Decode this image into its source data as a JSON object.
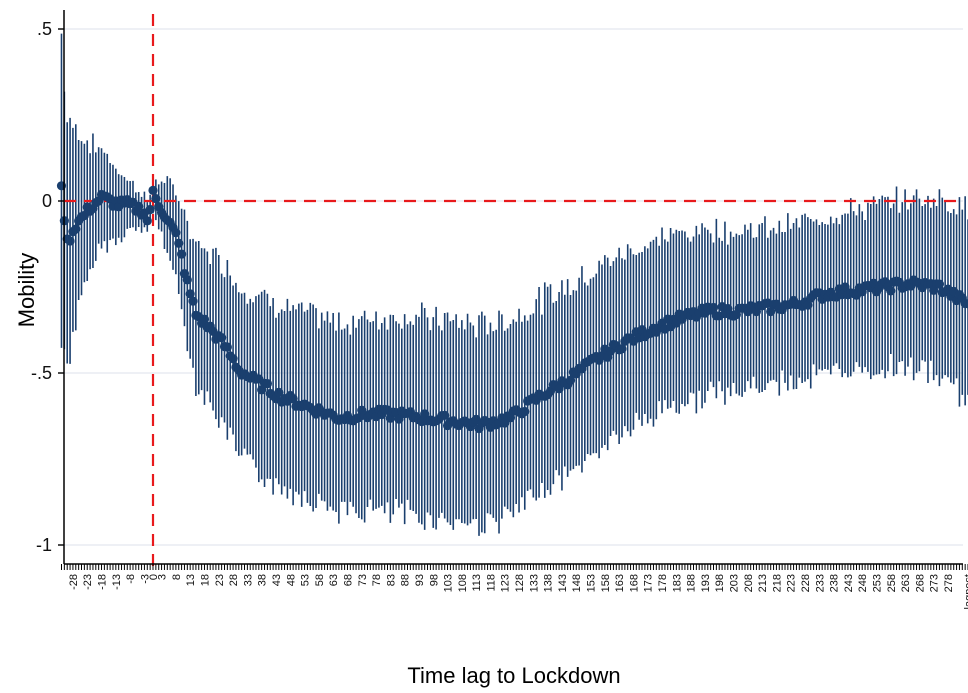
{
  "chart_data": {
    "type": "scatter",
    "title": "",
    "xlabel": "Time lag to Lockdown",
    "ylabel": "Mobility",
    "ylim": [
      -1.05,
      0.55
    ],
    "y_ticks": [
      {
        "value": 0.5,
        "label": ".5"
      },
      {
        "value": 0,
        "label": "0"
      },
      {
        "value": -0.5,
        "label": "-.5"
      },
      {
        "value": -1,
        "label": "-1"
      }
    ],
    "x_tick_labels": [
      "-28",
      "-23",
      "-18",
      "-13",
      "-8",
      "-3",
      "0",
      "3",
      "8",
      "13",
      "18",
      "23",
      "28",
      "33",
      "38",
      "43",
      "48",
      "53",
      "58",
      "63",
      "68",
      "73",
      "78",
      "83",
      "88",
      "93",
      "98",
      "103",
      "108",
      "113",
      "118",
      "123",
      "128",
      "133",
      "138",
      "143",
      "148",
      "153",
      "158",
      "163",
      "168",
      "173",
      "178",
      "183",
      "188",
      "193",
      "198",
      "203",
      "208",
      "213",
      "218",
      "223",
      "228",
      "233",
      "238",
      "243",
      "248",
      "253",
      "258",
      "263",
      "268",
      "273",
      "278",
      "lagpost"
    ],
    "x_tick_label_positions": [
      -28,
      -23,
      -18,
      -13,
      -8,
      -3,
      0,
      3,
      8,
      13,
      18,
      23,
      28,
      33,
      38,
      43,
      48,
      53,
      58,
      63,
      68,
      73,
      78,
      83,
      88,
      93,
      98,
      103,
      108,
      113,
      118,
      123,
      128,
      133,
      138,
      143,
      148,
      153,
      158,
      163,
      168,
      173,
      178,
      183,
      188,
      193,
      198,
      203,
      208,
      213,
      218,
      223,
      228,
      233,
      238,
      243,
      248,
      253,
      258,
      263,
      268,
      273,
      278,
      285
    ],
    "x_range": [
      -29,
      286
    ],
    "reference_lines": {
      "vertical_x": 0,
      "horizontal_y": 0,
      "color": "#e8191c",
      "style": "dashed"
    },
    "colors": {
      "marker": "#1a3f6e",
      "bar": "#1a3f6e",
      "grid": "#e3e8ef"
    },
    "grid": true,
    "legend": "none",
    "coef_curve": [
      [
        -32,
        0.03
      ],
      [
        -30,
        -0.12
      ],
      [
        -27,
        -0.07
      ],
      [
        -25,
        -0.05
      ],
      [
        -22,
        -0.02
      ],
      [
        -18,
        0.01
      ],
      [
        -15,
        0.0
      ],
      [
        -12,
        -0.01
      ],
      [
        -9,
        -0.01
      ],
      [
        -6,
        -0.02
      ],
      [
        -3,
        -0.03
      ],
      [
        -2,
        -0.06
      ],
      [
        0,
        0.02
      ],
      [
        2,
        -0.01
      ],
      [
        5,
        -0.05
      ],
      [
        8,
        -0.1
      ],
      [
        10,
        -0.16
      ],
      [
        12,
        -0.24
      ],
      [
        15,
        -0.33
      ],
      [
        20,
        -0.37
      ],
      [
        25,
        -0.42
      ],
      [
        30,
        -0.49
      ],
      [
        35,
        -0.52
      ],
      [
        45,
        -0.57
      ],
      [
        55,
        -0.6
      ],
      [
        65,
        -0.63
      ],
      [
        75,
        -0.62
      ],
      [
        85,
        -0.62
      ],
      [
        95,
        -0.63
      ],
      [
        105,
        -0.64
      ],
      [
        115,
        -0.65
      ],
      [
        125,
        -0.63
      ],
      [
        135,
        -0.57
      ],
      [
        145,
        -0.52
      ],
      [
        155,
        -0.46
      ],
      [
        165,
        -0.41
      ],
      [
        175,
        -0.37
      ],
      [
        185,
        -0.34
      ],
      [
        195,
        -0.32
      ],
      [
        205,
        -0.32
      ],
      [
        215,
        -0.31
      ],
      [
        225,
        -0.3
      ],
      [
        235,
        -0.27
      ],
      [
        245,
        -0.26
      ],
      [
        255,
        -0.25
      ],
      [
        265,
        -0.24
      ],
      [
        275,
        -0.25
      ],
      [
        285,
        -0.3
      ]
    ],
    "ci_halfwidth_curve": [
      [
        -32,
        0.45
      ],
      [
        -30,
        0.35
      ],
      [
        -27,
        0.28
      ],
      [
        -24,
        0.22
      ],
      [
        -20,
        0.16
      ],
      [
        -15,
        0.12
      ],
      [
        -10,
        0.08
      ],
      [
        -6,
        0.06
      ],
      [
        -3,
        0.05
      ],
      [
        -1,
        0.04
      ],
      [
        0,
        0.05
      ],
      [
        3,
        0.08
      ],
      [
        8,
        0.13
      ],
      [
        15,
        0.2
      ],
      [
        25,
        0.24
      ],
      [
        40,
        0.26
      ],
      [
        60,
        0.27
      ],
      [
        90,
        0.29
      ],
      [
        120,
        0.29
      ],
      [
        150,
        0.27
      ],
      [
        180,
        0.25
      ],
      [
        210,
        0.23
      ],
      [
        240,
        0.23
      ],
      [
        270,
        0.25
      ],
      [
        285,
        0.28
      ]
    ]
  }
}
